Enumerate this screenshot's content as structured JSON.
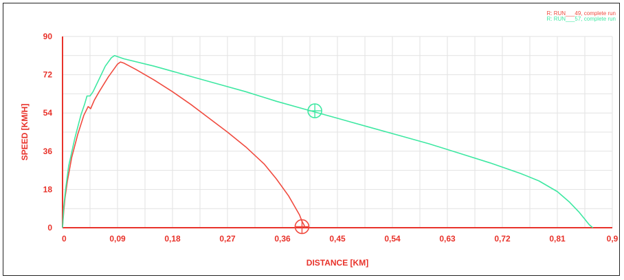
{
  "chart_data": {
    "type": "line",
    "xlabel": "DISTANCE [KM]",
    "ylabel": "SPEED [KM/H]",
    "xlim": [
      0,
      0.9
    ],
    "ylim": [
      0,
      90
    ],
    "x_ticks": [
      "0",
      "0,09",
      "0,18",
      "0,27",
      "0,36",
      "0,45",
      "0,54",
      "0,63",
      "0,72",
      "0,81",
      "0,9"
    ],
    "x_tick_values": [
      0,
      0.09,
      0.18,
      0.27,
      0.36,
      0.45,
      0.54,
      0.63,
      0.72,
      0.81,
      0.9
    ],
    "y_ticks": [
      "0",
      "18",
      "36",
      "54",
      "72",
      "90"
    ],
    "y_tick_values": [
      0,
      18,
      36,
      54,
      72,
      90
    ],
    "grid": true,
    "legend_position": "top-right",
    "axis_color": "#e8322a",
    "grid_color": "#e2e2e2",
    "series": [
      {
        "name": "R: RUN___49, complete run",
        "color": "#f04a3e",
        "x": [
          0,
          0.002,
          0.004,
          0.008,
          0.015,
          0.025,
          0.035,
          0.042,
          0.046,
          0.052,
          0.06,
          0.075,
          0.09,
          0.095,
          0.1,
          0.12,
          0.15,
          0.18,
          0.21,
          0.24,
          0.27,
          0.3,
          0.33,
          0.35,
          0.37,
          0.38,
          0.388,
          0.392,
          0.395,
          0.397
        ],
        "y": [
          0,
          8,
          14,
          22,
          33,
          44,
          53,
          57,
          56,
          60,
          64,
          71,
          77,
          78,
          77.5,
          74.5,
          69.5,
          64,
          58,
          51.5,
          45,
          38,
          30,
          23,
          15,
          10,
          6,
          3,
          1.5,
          0
        ]
      },
      {
        "name": "R: RUN___57, complete run",
        "color": "#3ee8a2",
        "x": [
          0,
          0.002,
          0.005,
          0.01,
          0.02,
          0.03,
          0.036,
          0.04,
          0.045,
          0.05,
          0.06,
          0.07,
          0.08,
          0.085,
          0.1,
          0.15,
          0.2,
          0.25,
          0.3,
          0.35,
          0.4,
          0.45,
          0.5,
          0.55,
          0.6,
          0.65,
          0.7,
          0.75,
          0.78,
          0.81,
          0.83,
          0.845,
          0.855,
          0.862,
          0.866,
          0.868
        ],
        "y": [
          0,
          10,
          18,
          29,
          42,
          53,
          58,
          62,
          62,
          64,
          70,
          76,
          80,
          81,
          79.5,
          76,
          72,
          68,
          64,
          59.5,
          55.5,
          51.5,
          47.5,
          43.5,
          39.5,
          35,
          30.5,
          25.5,
          22,
          17,
          12,
          7.5,
          4,
          1.5,
          0.5,
          0
        ]
      }
    ],
    "markers": [
      {
        "series": "R: RUN___49, complete run",
        "x": 0.392,
        "y": 0.5
      },
      {
        "series": "R: RUN___57, complete run",
        "x": 0.413,
        "y": 55
      }
    ]
  }
}
